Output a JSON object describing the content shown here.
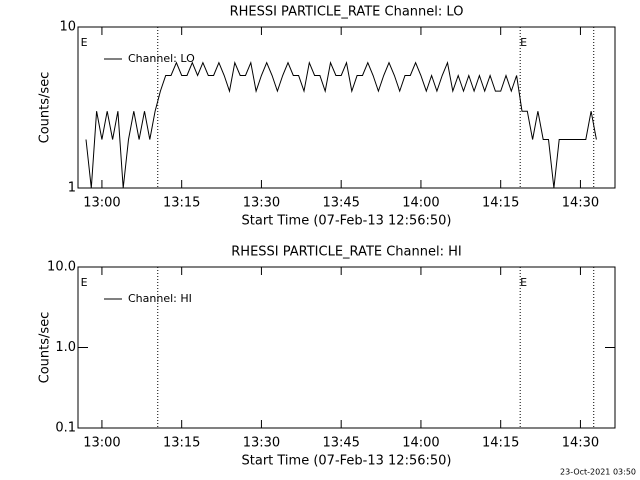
{
  "chart_data": [
    {
      "type": "line",
      "title": "RHESSI PARTICLE_RATE Channel: LO",
      "xlabel": "Start Time (07-Feb-13 12:56:50)",
      "ylabel": "Counts/sec",
      "log_y": true,
      "xlim": [
        "12:55:30",
        "14:36:30"
      ],
      "xticks": [
        "13:00",
        "13:15",
        "13:30",
        "13:45",
        "14:00",
        "14:15",
        "14:30"
      ],
      "ylim": [
        1,
        10
      ],
      "yticks": [
        1,
        10
      ],
      "legend": "upper left",
      "vlines": [
        "13:10:30",
        "14:18:40",
        "14:32:30"
      ],
      "annotations": [
        {
          "text": "E",
          "x": "12:56:00"
        },
        {
          "text": "E",
          "x": "14:18:40"
        }
      ],
      "x": [
        "12:57",
        "12:58",
        "12:59",
        "13:00",
        "13:01",
        "13:02",
        "13:03",
        "13:04",
        "13:05",
        "13:06",
        "13:07",
        "13:08",
        "13:09",
        "13:10",
        "13:11",
        "13:12",
        "13:13",
        "13:14",
        "13:15",
        "13:16",
        "13:17",
        "13:18",
        "13:19",
        "13:20",
        "13:21",
        "13:22",
        "13:23",
        "13:24",
        "13:25",
        "13:26",
        "13:27",
        "13:28",
        "13:29",
        "13:30",
        "13:31",
        "13:32",
        "13:33",
        "13:34",
        "13:35",
        "13:36",
        "13:37",
        "13:38",
        "13:39",
        "13:40",
        "13:41",
        "13:42",
        "13:43",
        "13:44",
        "13:45",
        "13:46",
        "13:47",
        "13:48",
        "13:49",
        "13:50",
        "13:51",
        "13:52",
        "13:53",
        "13:54",
        "13:55",
        "13:56",
        "13:57",
        "13:58",
        "13:59",
        "14:00",
        "14:01",
        "14:02",
        "14:03",
        "14:04",
        "14:05",
        "14:06",
        "14:07",
        "14:08",
        "14:09",
        "14:10",
        "14:11",
        "14:12",
        "14:13",
        "14:14",
        "14:15",
        "14:16",
        "14:17",
        "14:18",
        "14:19",
        "14:20",
        "14:21",
        "14:22",
        "14:23",
        "14:24",
        "14:25",
        "14:26",
        "14:27",
        "14:28",
        "14:29",
        "14:30",
        "14:31",
        "14:32",
        "14:33"
      ],
      "series": [
        {
          "name": "Channel: LO",
          "color": "#000000",
          "values": [
            2,
            1,
            3,
            2,
            3,
            2,
            3,
            1,
            2,
            3,
            2,
            3,
            2,
            3,
            4,
            5,
            5,
            6,
            5,
            5,
            6,
            5,
            6,
            5,
            5,
            6,
            5,
            4,
            6,
            5,
            5,
            6,
            4,
            5,
            6,
            5,
            4,
            5,
            6,
            5,
            5,
            4,
            6,
            5,
            5,
            4,
            6,
            5,
            5,
            6,
            4,
            5,
            5,
            6,
            5,
            4,
            5,
            6,
            5,
            4,
            5,
            5,
            6,
            5,
            4,
            5,
            4,
            5,
            6,
            4,
            5,
            4,
            5,
            4,
            5,
            4,
            5,
            4,
            4,
            5,
            4,
            5,
            3,
            3,
            2,
            3,
            2,
            2,
            1,
            2,
            2,
            2,
            2,
            2,
            2,
            3,
            2
          ]
        }
      ]
    },
    {
      "type": "line",
      "title": "RHESSI PARTICLE_RATE Channel: HI",
      "xlabel": "Start Time (07-Feb-13 12:56:50)",
      "ylabel": "Counts/sec",
      "log_y": true,
      "xlim": [
        "12:55:30",
        "14:36:30"
      ],
      "xticks": [
        "13:00",
        "13:15",
        "13:30",
        "13:45",
        "14:00",
        "14:15",
        "14:30"
      ],
      "ylim": [
        0.1,
        10
      ],
      "yticks": [
        {
          "value": 0.1,
          "label": "0.1"
        },
        {
          "value": 1,
          "label": "1.0"
        },
        {
          "value": 10,
          "label": "10.0"
        }
      ],
      "legend": "upper left",
      "vlines": [
        "13:10:30",
        "14:18:40",
        "14:32:30"
      ],
      "annotations": [
        {
          "text": "E",
          "x": "12:56:00"
        },
        {
          "text": "E",
          "x": "14:18:40"
        }
      ],
      "x": [],
      "series": [
        {
          "name": "Channel: HI",
          "color": "#000000",
          "values": []
        }
      ]
    }
  ],
  "footer": "23-Oct-2021 03:50"
}
